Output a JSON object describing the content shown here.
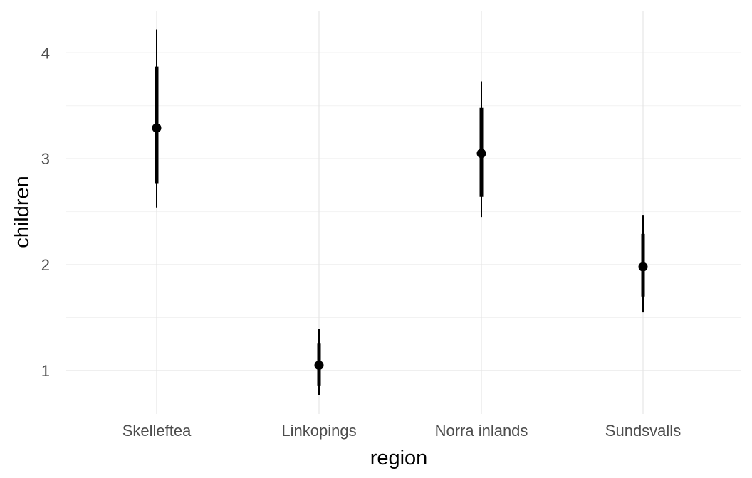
{
  "chart_data": {
    "type": "pointrange",
    "xlabel": "region",
    "ylabel": "children",
    "categories": [
      "Skelleftea",
      "Linkopings",
      "Norra inlands",
      "Sundsvalls"
    ],
    "estimates": [
      3.29,
      1.05,
      3.05,
      1.98
    ],
    "inner_interval": [
      [
        2.77,
        3.87
      ],
      [
        0.86,
        1.26
      ],
      [
        2.64,
        3.48
      ],
      [
        1.7,
        2.29
      ]
    ],
    "outer_interval": [
      [
        2.54,
        4.22
      ],
      [
        0.77,
        1.39
      ],
      [
        2.45,
        3.73
      ],
      [
        1.55,
        2.47
      ]
    ],
    "ylim": [
      0.6,
      4.4
    ],
    "yticks": [
      1,
      2,
      3,
      4
    ],
    "grid": true
  }
}
